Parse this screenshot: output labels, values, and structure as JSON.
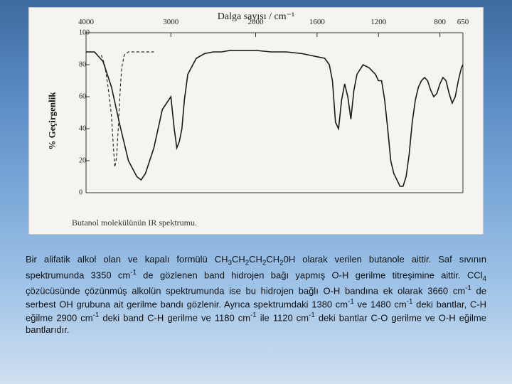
{
  "spectrum": {
    "type": "line",
    "title": "Dalga sayısı / cm⁻¹",
    "ylabel": "% Geçirgenlik",
    "caption": "Butanol molekülünün IR spektrumu.",
    "background_color": "#f5f4f0",
    "line_color": "#1a1a1a",
    "dashed_line_color": "#2a2a2a",
    "axis_color": "#333333",
    "xlim": [
      650,
      4000
    ],
    "ylim": [
      0,
      100
    ],
    "xticks": [
      4000,
      3000,
      2000,
      1600,
      1200,
      800,
      650
    ],
    "yticks": [
      0,
      20,
      40,
      60,
      80,
      100
    ],
    "title_fontsize": 14,
    "label_fontsize": 13,
    "tick_fontsize": 11,
    "line_width": 1.6,
    "solid_points": [
      [
        4000,
        88
      ],
      [
        3900,
        88
      ],
      [
        3800,
        82
      ],
      [
        3700,
        66
      ],
      [
        3600,
        42
      ],
      [
        3500,
        20
      ],
      [
        3400,
        10
      ],
      [
        3350,
        8
      ],
      [
        3300,
        12
      ],
      [
        3200,
        28
      ],
      [
        3100,
        52
      ],
      [
        3000,
        60
      ],
      [
        2960,
        40
      ],
      [
        2930,
        28
      ],
      [
        2900,
        32
      ],
      [
        2870,
        40
      ],
      [
        2840,
        58
      ],
      [
        2800,
        74
      ],
      [
        2700,
        84
      ],
      [
        2600,
        87
      ],
      [
        2500,
        88
      ],
      [
        2400,
        88
      ],
      [
        2300,
        89
      ],
      [
        2200,
        89
      ],
      [
        2100,
        89
      ],
      [
        2000,
        89
      ],
      [
        1900,
        88
      ],
      [
        1800,
        88
      ],
      [
        1700,
        87
      ],
      [
        1650,
        86
      ],
      [
        1600,
        85
      ],
      [
        1550,
        84
      ],
      [
        1520,
        80
      ],
      [
        1500,
        70
      ],
      [
        1480,
        44
      ],
      [
        1460,
        40
      ],
      [
        1440,
        58
      ],
      [
        1420,
        68
      ],
      [
        1400,
        60
      ],
      [
        1380,
        46
      ],
      [
        1360,
        64
      ],
      [
        1340,
        74
      ],
      [
        1300,
        80
      ],
      [
        1260,
        78
      ],
      [
        1220,
        74
      ],
      [
        1200,
        70
      ],
      [
        1180,
        70
      ],
      [
        1160,
        58
      ],
      [
        1140,
        40
      ],
      [
        1120,
        20
      ],
      [
        1100,
        12
      ],
      [
        1080,
        8
      ],
      [
        1060,
        4
      ],
      [
        1040,
        4
      ],
      [
        1020,
        10
      ],
      [
        1000,
        24
      ],
      [
        980,
        44
      ],
      [
        960,
        58
      ],
      [
        940,
        66
      ],
      [
        920,
        70
      ],
      [
        900,
        72
      ],
      [
        880,
        70
      ],
      [
        860,
        64
      ],
      [
        840,
        60
      ],
      [
        820,
        62
      ],
      [
        800,
        68
      ],
      [
        780,
        72
      ],
      [
        760,
        70
      ],
      [
        740,
        62
      ],
      [
        720,
        56
      ],
      [
        700,
        60
      ],
      [
        680,
        70
      ],
      [
        660,
        78
      ],
      [
        650,
        80
      ]
    ],
    "dashed_points": [
      [
        3820,
        86
      ],
      [
        3780,
        80
      ],
      [
        3740,
        66
      ],
      [
        3700,
        48
      ],
      [
        3680,
        30
      ],
      [
        3660,
        16
      ],
      [
        3640,
        22
      ],
      [
        3620,
        40
      ],
      [
        3600,
        62
      ],
      [
        3580,
        78
      ],
      [
        3550,
        86
      ],
      [
        3500,
        88
      ],
      [
        3400,
        88
      ],
      [
        3300,
        88
      ],
      [
        3200,
        88
      ]
    ]
  },
  "paragraph": {
    "p1a": "Bir alifatik alkol olan ve kapalı formülü CH",
    "p1b": "CH",
    "p1c": "CH",
    "p1d": "CH",
    "p1e": "0H olarak verilen butanole aittir. Saf sıvının spektrumunda 3350 cm",
    "p1f": " de gözlenen band hidrojen bağı yapmış O-H gerilme titreşimine aittir. CCl",
    "p1g": " çözücüsünde çözünmüş alkolün spektrumunda ise bu hidrojen bağlı O-H bandına ek olarak 3660 cm",
    "p1h": " de serbest OH grubuna ait gerilme bandı gözlenir. Ayrıca spektrumdaki 1380 cm",
    "p1i": " ve 1480 cm",
    "p1j": " deki bantlar, C-H eğilme 2900 cm",
    "p1k": " deki band C-H gerilme ve 1180 cm",
    "p1l": " ile 1120 cm",
    "p1m": " deki bantlar C-O gerilme ve O-H eğilme bantlarıdır.",
    "sub3": "3",
    "sub2": "2",
    "sub4": "4",
    "supminus1": "-1"
  }
}
